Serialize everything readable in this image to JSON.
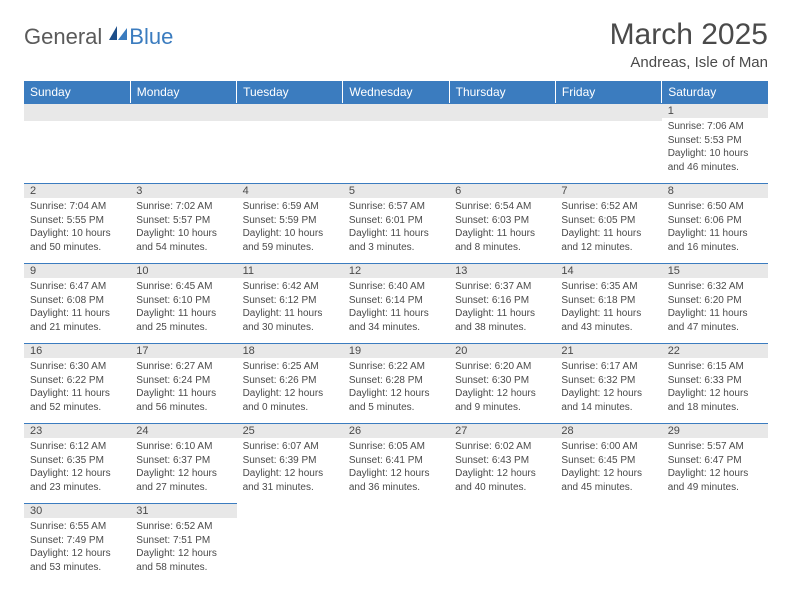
{
  "brand": {
    "general": "General",
    "blue": "Blue"
  },
  "header": {
    "title": "March 2025",
    "location": "Andreas, Isle of Man"
  },
  "columns": [
    "Sunday",
    "Monday",
    "Tuesday",
    "Wednesday",
    "Thursday",
    "Friday",
    "Saturday"
  ],
  "colors": {
    "header_bg": "#3b7cbf",
    "header_text": "#ffffff",
    "daynum_bg": "#e8e8e8",
    "border_top": "#3b7cbf",
    "body_text": "#4a4a4a",
    "empty_bg": "#f3f3f3"
  },
  "weeks": [
    [
      null,
      null,
      null,
      null,
      null,
      null,
      {
        "n": "1",
        "sunrise": "Sunrise: 7:06 AM",
        "sunset": "Sunset: 5:53 PM",
        "daylight1": "Daylight: 10 hours",
        "daylight2": "and 46 minutes."
      }
    ],
    [
      {
        "n": "2",
        "sunrise": "Sunrise: 7:04 AM",
        "sunset": "Sunset: 5:55 PM",
        "daylight1": "Daylight: 10 hours",
        "daylight2": "and 50 minutes."
      },
      {
        "n": "3",
        "sunrise": "Sunrise: 7:02 AM",
        "sunset": "Sunset: 5:57 PM",
        "daylight1": "Daylight: 10 hours",
        "daylight2": "and 54 minutes."
      },
      {
        "n": "4",
        "sunrise": "Sunrise: 6:59 AM",
        "sunset": "Sunset: 5:59 PM",
        "daylight1": "Daylight: 10 hours",
        "daylight2": "and 59 minutes."
      },
      {
        "n": "5",
        "sunrise": "Sunrise: 6:57 AM",
        "sunset": "Sunset: 6:01 PM",
        "daylight1": "Daylight: 11 hours",
        "daylight2": "and 3 minutes."
      },
      {
        "n": "6",
        "sunrise": "Sunrise: 6:54 AM",
        "sunset": "Sunset: 6:03 PM",
        "daylight1": "Daylight: 11 hours",
        "daylight2": "and 8 minutes."
      },
      {
        "n": "7",
        "sunrise": "Sunrise: 6:52 AM",
        "sunset": "Sunset: 6:05 PM",
        "daylight1": "Daylight: 11 hours",
        "daylight2": "and 12 minutes."
      },
      {
        "n": "8",
        "sunrise": "Sunrise: 6:50 AM",
        "sunset": "Sunset: 6:06 PM",
        "daylight1": "Daylight: 11 hours",
        "daylight2": "and 16 minutes."
      }
    ],
    [
      {
        "n": "9",
        "sunrise": "Sunrise: 6:47 AM",
        "sunset": "Sunset: 6:08 PM",
        "daylight1": "Daylight: 11 hours",
        "daylight2": "and 21 minutes."
      },
      {
        "n": "10",
        "sunrise": "Sunrise: 6:45 AM",
        "sunset": "Sunset: 6:10 PM",
        "daylight1": "Daylight: 11 hours",
        "daylight2": "and 25 minutes."
      },
      {
        "n": "11",
        "sunrise": "Sunrise: 6:42 AM",
        "sunset": "Sunset: 6:12 PM",
        "daylight1": "Daylight: 11 hours",
        "daylight2": "and 30 minutes."
      },
      {
        "n": "12",
        "sunrise": "Sunrise: 6:40 AM",
        "sunset": "Sunset: 6:14 PM",
        "daylight1": "Daylight: 11 hours",
        "daylight2": "and 34 minutes."
      },
      {
        "n": "13",
        "sunrise": "Sunrise: 6:37 AM",
        "sunset": "Sunset: 6:16 PM",
        "daylight1": "Daylight: 11 hours",
        "daylight2": "and 38 minutes."
      },
      {
        "n": "14",
        "sunrise": "Sunrise: 6:35 AM",
        "sunset": "Sunset: 6:18 PM",
        "daylight1": "Daylight: 11 hours",
        "daylight2": "and 43 minutes."
      },
      {
        "n": "15",
        "sunrise": "Sunrise: 6:32 AM",
        "sunset": "Sunset: 6:20 PM",
        "daylight1": "Daylight: 11 hours",
        "daylight2": "and 47 minutes."
      }
    ],
    [
      {
        "n": "16",
        "sunrise": "Sunrise: 6:30 AM",
        "sunset": "Sunset: 6:22 PM",
        "daylight1": "Daylight: 11 hours",
        "daylight2": "and 52 minutes."
      },
      {
        "n": "17",
        "sunrise": "Sunrise: 6:27 AM",
        "sunset": "Sunset: 6:24 PM",
        "daylight1": "Daylight: 11 hours",
        "daylight2": "and 56 minutes."
      },
      {
        "n": "18",
        "sunrise": "Sunrise: 6:25 AM",
        "sunset": "Sunset: 6:26 PM",
        "daylight1": "Daylight: 12 hours",
        "daylight2": "and 0 minutes."
      },
      {
        "n": "19",
        "sunrise": "Sunrise: 6:22 AM",
        "sunset": "Sunset: 6:28 PM",
        "daylight1": "Daylight: 12 hours",
        "daylight2": "and 5 minutes."
      },
      {
        "n": "20",
        "sunrise": "Sunrise: 6:20 AM",
        "sunset": "Sunset: 6:30 PM",
        "daylight1": "Daylight: 12 hours",
        "daylight2": "and 9 minutes."
      },
      {
        "n": "21",
        "sunrise": "Sunrise: 6:17 AM",
        "sunset": "Sunset: 6:32 PM",
        "daylight1": "Daylight: 12 hours",
        "daylight2": "and 14 minutes."
      },
      {
        "n": "22",
        "sunrise": "Sunrise: 6:15 AM",
        "sunset": "Sunset: 6:33 PM",
        "daylight1": "Daylight: 12 hours",
        "daylight2": "and 18 minutes."
      }
    ],
    [
      {
        "n": "23",
        "sunrise": "Sunrise: 6:12 AM",
        "sunset": "Sunset: 6:35 PM",
        "daylight1": "Daylight: 12 hours",
        "daylight2": "and 23 minutes."
      },
      {
        "n": "24",
        "sunrise": "Sunrise: 6:10 AM",
        "sunset": "Sunset: 6:37 PM",
        "daylight1": "Daylight: 12 hours",
        "daylight2": "and 27 minutes."
      },
      {
        "n": "25",
        "sunrise": "Sunrise: 6:07 AM",
        "sunset": "Sunset: 6:39 PM",
        "daylight1": "Daylight: 12 hours",
        "daylight2": "and 31 minutes."
      },
      {
        "n": "26",
        "sunrise": "Sunrise: 6:05 AM",
        "sunset": "Sunset: 6:41 PM",
        "daylight1": "Daylight: 12 hours",
        "daylight2": "and 36 minutes."
      },
      {
        "n": "27",
        "sunrise": "Sunrise: 6:02 AM",
        "sunset": "Sunset: 6:43 PM",
        "daylight1": "Daylight: 12 hours",
        "daylight2": "and 40 minutes."
      },
      {
        "n": "28",
        "sunrise": "Sunrise: 6:00 AM",
        "sunset": "Sunset: 6:45 PM",
        "daylight1": "Daylight: 12 hours",
        "daylight2": "and 45 minutes."
      },
      {
        "n": "29",
        "sunrise": "Sunrise: 5:57 AM",
        "sunset": "Sunset: 6:47 PM",
        "daylight1": "Daylight: 12 hours",
        "daylight2": "and 49 minutes."
      }
    ],
    [
      {
        "n": "30",
        "sunrise": "Sunrise: 6:55 AM",
        "sunset": "Sunset: 7:49 PM",
        "daylight1": "Daylight: 12 hours",
        "daylight2": "and 53 minutes."
      },
      {
        "n": "31",
        "sunrise": "Sunrise: 6:52 AM",
        "sunset": "Sunset: 7:51 PM",
        "daylight1": "Daylight: 12 hours",
        "daylight2": "and 58 minutes."
      },
      null,
      null,
      null,
      null,
      null
    ]
  ]
}
